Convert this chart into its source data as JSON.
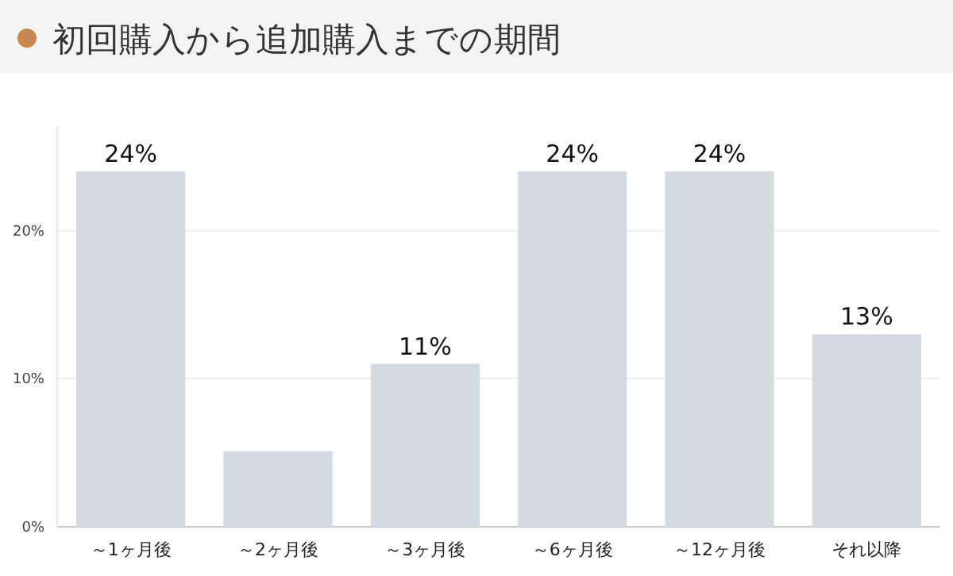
{
  "chart_data": {
    "type": "bar",
    "title": "初回購入から追加購入までの期間",
    "categories": [
      "～1ヶ月後",
      "～2ヶ月後",
      "～3ヶ月後",
      "～6ヶ月後",
      "～12ヶ月後",
      "それ以降"
    ],
    "values": [
      24,
      5.1,
      11,
      24,
      24,
      13
    ],
    "value_labels": [
      "24%",
      null,
      "11%",
      "24%",
      "24%",
      "13%"
    ],
    "color": "#d3dae0",
    "ylim": [
      0,
      27
    ],
    "yticks": [
      {
        "value": 0,
        "label": "0%"
      },
      {
        "value": 10,
        "label": "10%"
      },
      {
        "value": 20,
        "label": "20%"
      }
    ],
    "grid": "y"
  }
}
